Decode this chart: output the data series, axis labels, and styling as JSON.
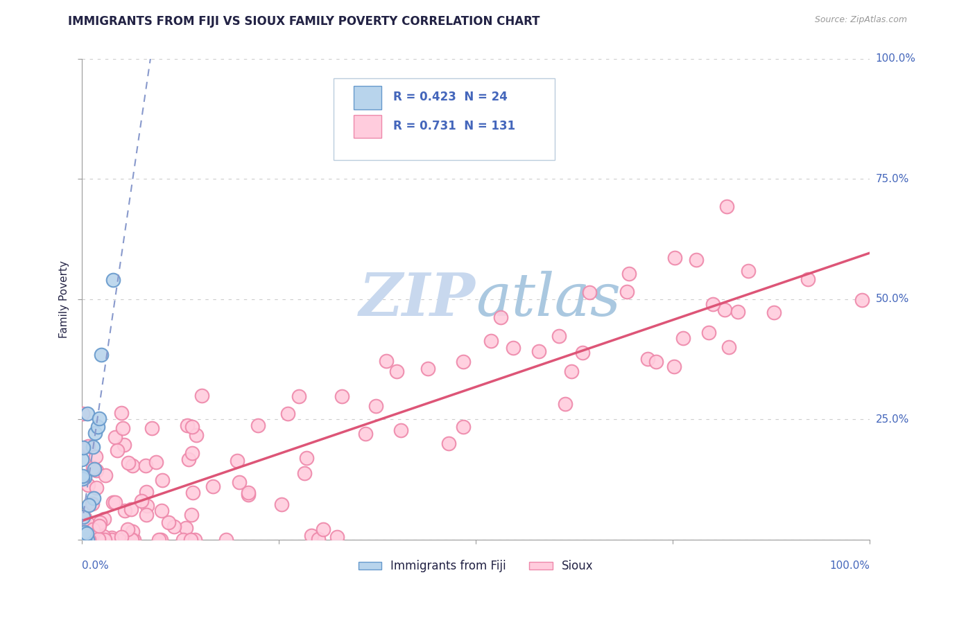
{
  "title": "IMMIGRANTS FROM FIJI VS SIOUX FAMILY POVERTY CORRELATION CHART",
  "source_text": "Source: ZipAtlas.com",
  "ylabel": "Family Poverty",
  "ytick_labels": [
    "0.0%",
    "25.0%",
    "50.0%",
    "75.0%",
    "100.0%"
  ],
  "ytick_values": [
    0,
    25,
    50,
    75,
    100
  ],
  "fiji_R": 0.423,
  "fiji_N": 24,
  "sioux_R": 0.731,
  "sioux_N": 131,
  "fiji_color": "#b8d4ec",
  "fiji_edge_color": "#6699cc",
  "sioux_color": "#ffccdd",
  "sioux_edge_color": "#ee88aa",
  "fiji_line_color": "#8899cc",
  "sioux_line_color": "#dd5577",
  "legend_text_color": "#4466bb",
  "title_color": "#222244",
  "watermark_zip_color": "#c8d8ee",
  "watermark_atlas_color": "#aac8e0",
  "background_color": "#ffffff",
  "grid_color": "#cccccc",
  "axis_color": "#999999",
  "legend_border_color": "#bbccdd"
}
